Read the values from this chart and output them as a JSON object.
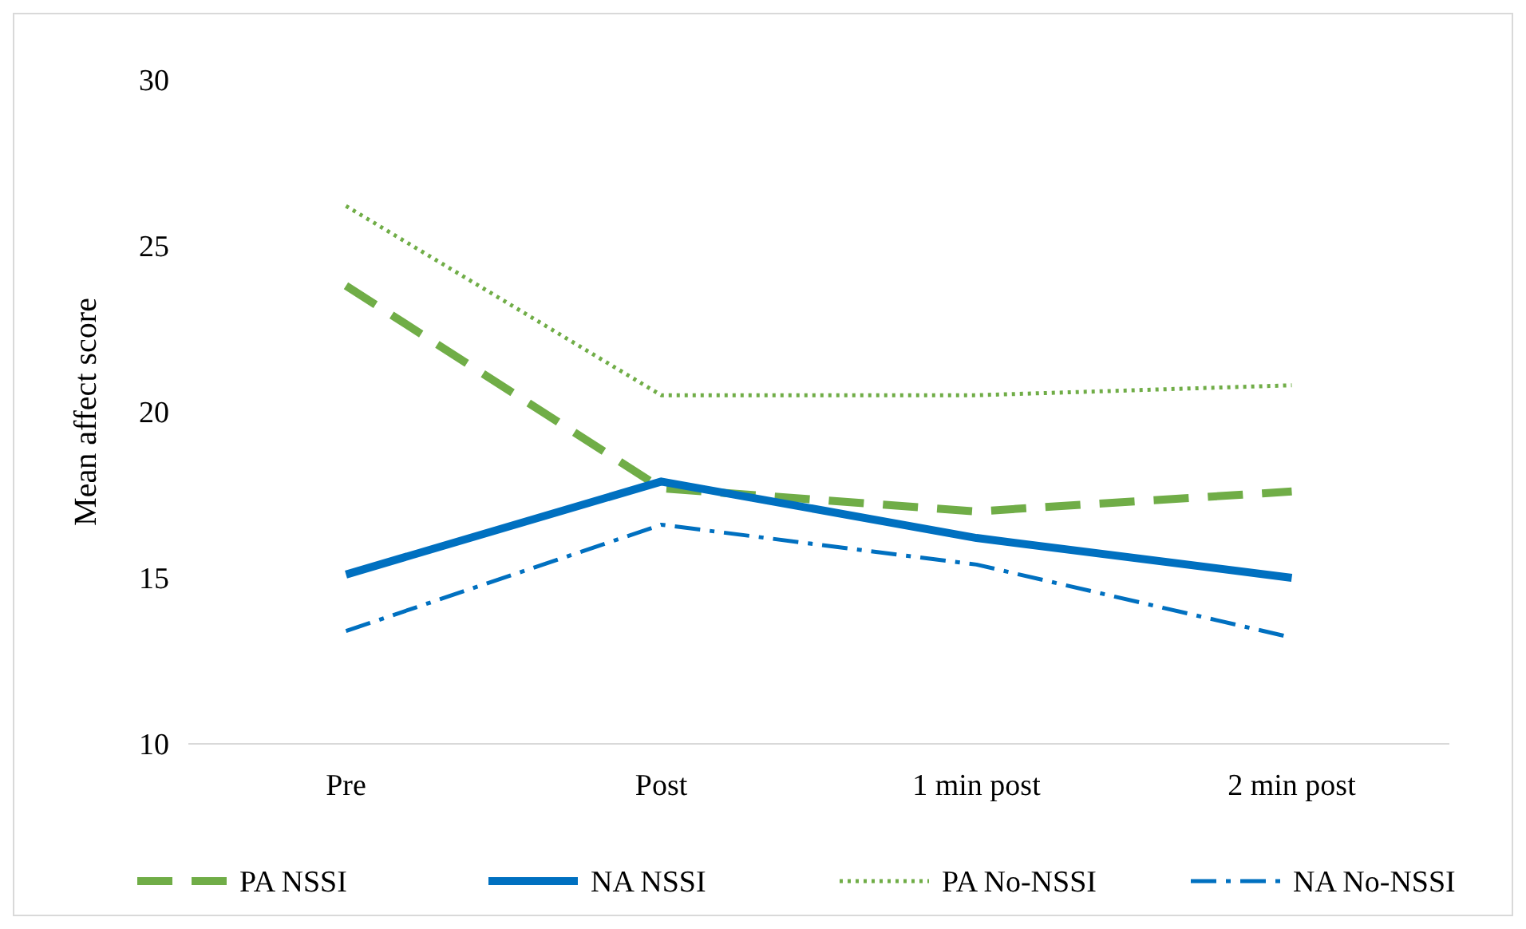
{
  "chart_data": {
    "type": "line",
    "ylabel": "Mean affect score",
    "categories": [
      "Pre",
      "Post",
      "1 min post",
      "2 min post"
    ],
    "series": [
      {
        "name": "PA NSSI",
        "color": "#70ad47",
        "line_style": "dashed",
        "values": [
          23.8,
          17.7,
          17.0,
          17.6
        ]
      },
      {
        "name": "NA NSSI",
        "color": "#0070c0",
        "line_style": "solid",
        "values": [
          15.1,
          17.9,
          16.2,
          15.0
        ]
      },
      {
        "name": "PA No-NSSI",
        "color": "#70ad47",
        "line_style": "dotted",
        "values": [
          26.2,
          20.5,
          20.5,
          20.8
        ]
      },
      {
        "name": "NA No-NSSI",
        "color": "#0070c0",
        "line_style": "dashdot",
        "values": [
          13.4,
          16.6,
          15.4,
          13.2
        ]
      }
    ],
    "ylim": [
      10,
      30
    ],
    "yticks": [
      10,
      15,
      20,
      25,
      30
    ],
    "grid": false,
    "legend": "bottom",
    "marker": "none"
  }
}
